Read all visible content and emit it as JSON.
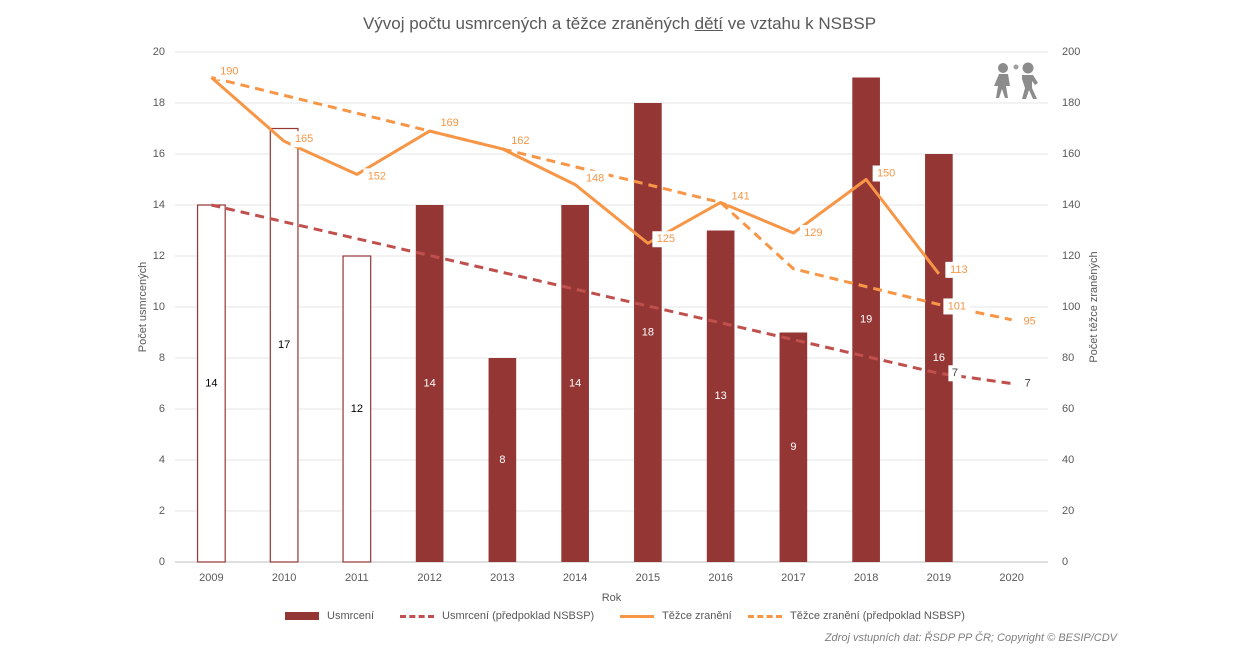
{
  "chart_data": {
    "type": "bar",
    "title_parts": [
      "Vývoj počtu usmrcených a těžce zraněných ",
      "dětí",
      " ve vztahu k NSBSP"
    ],
    "xlabel": "Rok",
    "ylabel_left": "Počet usmrcených",
    "ylabel_right": "Počet těžce zraněných",
    "categories": [
      "2009",
      "2010",
      "2011",
      "2012",
      "2013",
      "2014",
      "2015",
      "2016",
      "2017",
      "2018",
      "2019",
      "2020"
    ],
    "ylim_left": [
      0,
      20
    ],
    "ylim_right": [
      0,
      200
    ],
    "yticks_left": [
      "0",
      "2",
      "4",
      "6",
      "8",
      "10",
      "12",
      "14",
      "16",
      "18",
      "20"
    ],
    "yticks_right": [
      "0",
      "20",
      "40",
      "60",
      "80",
      "100",
      "120",
      "140",
      "160",
      "180",
      "200"
    ],
    "grid": true,
    "legend_position": "bottom",
    "series": [
      {
        "name": "Usmrcení",
        "kind": "bar",
        "axis": "left",
        "color": "#943634",
        "values": [
          14,
          17,
          12,
          14,
          8,
          14,
          18,
          13,
          9,
          19,
          16,
          null
        ],
        "outline_only_years": [
          "2009",
          "2010",
          "2011"
        ]
      },
      {
        "name": "Usmrcení (předpoklad NSBSP)",
        "kind": "line-dashed",
        "axis": "left",
        "color": "#c0504d",
        "values": [
          14,
          null,
          null,
          null,
          null,
          null,
          null,
          null,
          null,
          null,
          7.4,
          7
        ],
        "labels": [
          null,
          null,
          null,
          null,
          null,
          null,
          null,
          null,
          null,
          null,
          "7",
          "7"
        ]
      },
      {
        "name": "Těžce zranění",
        "kind": "line",
        "axis": "right",
        "color": "#f79646",
        "values": [
          190,
          165,
          152,
          169,
          162,
          148,
          125,
          141,
          129,
          150,
          113,
          null
        ]
      },
      {
        "name": "Těžce zranění (předpoklad NSBSP)",
        "kind": "line-dashed",
        "axis": "right",
        "color": "#f79646",
        "values": [
          190,
          null,
          null,
          169,
          162,
          null,
          null,
          141,
          115,
          null,
          101,
          95
        ],
        "labels": [
          null,
          null,
          null,
          null,
          null,
          null,
          null,
          null,
          null,
          null,
          "101",
          "95"
        ]
      }
    ]
  },
  "source_note": "Zdroj vstupních dat: ŘSDP PP ČR; Copyright © BESIP/CDV"
}
